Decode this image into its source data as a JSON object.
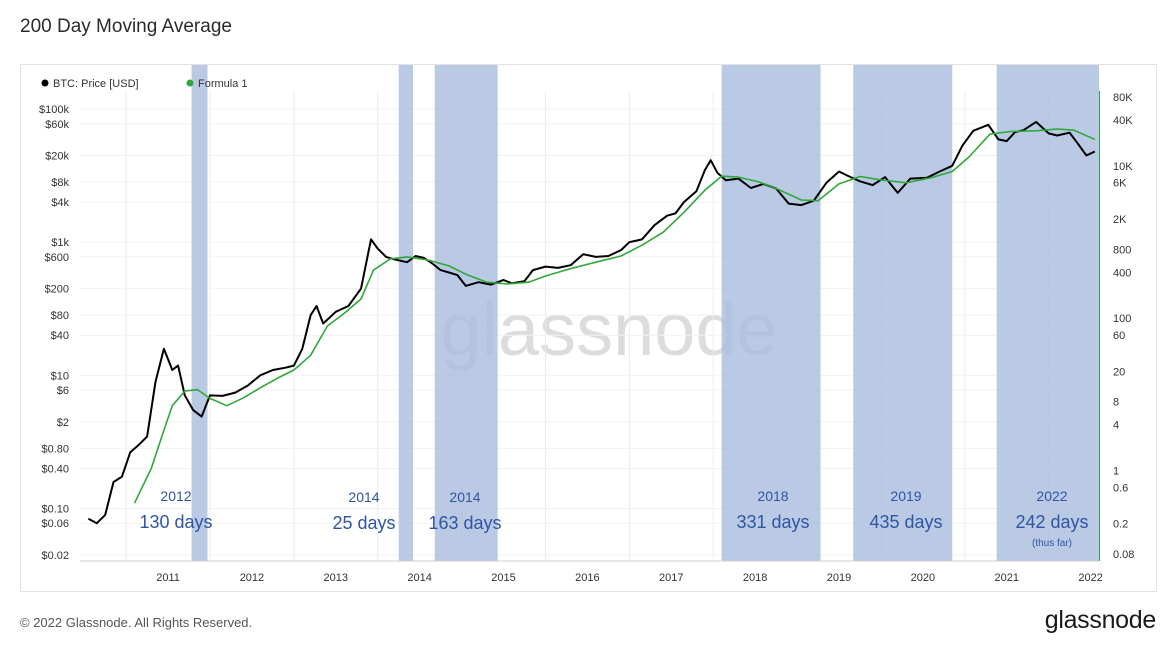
{
  "page": {
    "title": "200 Day Moving Average",
    "copyright": "© 2022 Glassnode. All Rights Reserved.",
    "brand": "glassnode"
  },
  "chart_data": {
    "type": "line",
    "watermark": "glassnode",
    "legend": [
      {
        "name": "BTC: Price [USD]",
        "color": "#000000"
      },
      {
        "name": "Formula 1",
        "color": "#2fa83a"
      }
    ],
    "x_ticks": [
      "2011",
      "2012",
      "2013",
      "2014",
      "2015",
      "2016",
      "2017",
      "2018",
      "2019",
      "2020",
      "2021",
      "2022"
    ],
    "y_left_scale": "log",
    "y_left_ticks": [
      "$100k",
      "$60k",
      "$20k",
      "$8k",
      "$4k",
      "$1k",
      "$600",
      "$200",
      "$80",
      "$40",
      "$10",
      "$6",
      "$2",
      "$0.80",
      "$0.40",
      "$0.10",
      "$0.06",
      "$0.02"
    ],
    "y_left_values": [
      100000,
      60000,
      20000,
      8000,
      4000,
      1000,
      600,
      200,
      80,
      40,
      10,
      6,
      2,
      0.8,
      0.4,
      0.1,
      0.06,
      0.02
    ],
    "y_right_scale": "log",
    "y_right_ticks": [
      "80K",
      "40K",
      "10K",
      "6K",
      "2K",
      "800",
      "400",
      "100",
      "60",
      "20",
      "8",
      "4",
      "1",
      "0.6",
      "0.2",
      "0.08"
    ],
    "y_right_values": [
      80000,
      40000,
      10000,
      6000,
      2000,
      800,
      400,
      100,
      60,
      20,
      8,
      4,
      1,
      0.6,
      0.2,
      0.08
    ],
    "series": [
      {
        "name": "BTC: Price [USD]",
        "color": "#000000",
        "points": [
          [
            2010.55,
            0.07
          ],
          [
            2010.65,
            0.06
          ],
          [
            2010.75,
            0.08
          ],
          [
            2010.85,
            0.25
          ],
          [
            2010.95,
            0.3
          ],
          [
            2011.05,
            0.7
          ],
          [
            2011.15,
            0.9
          ],
          [
            2011.25,
            1.2
          ],
          [
            2011.35,
            8
          ],
          [
            2011.45,
            25
          ],
          [
            2011.55,
            12
          ],
          [
            2011.62,
            14
          ],
          [
            2011.7,
            5
          ],
          [
            2011.8,
            3
          ],
          [
            2011.9,
            2.4
          ],
          [
            2012.0,
            5
          ],
          [
            2012.15,
            4.9
          ],
          [
            2012.3,
            5.5
          ],
          [
            2012.45,
            7
          ],
          [
            2012.6,
            10
          ],
          [
            2012.75,
            12
          ],
          [
            2012.9,
            13
          ],
          [
            2013.0,
            14
          ],
          [
            2013.1,
            25
          ],
          [
            2013.2,
            80
          ],
          [
            2013.27,
            110
          ],
          [
            2013.35,
            60
          ],
          [
            2013.5,
            90
          ],
          [
            2013.65,
            110
          ],
          [
            2013.8,
            200
          ],
          [
            2013.92,
            1100
          ],
          [
            2014.0,
            800
          ],
          [
            2014.1,
            600
          ],
          [
            2014.2,
            550
          ],
          [
            2014.35,
            500
          ],
          [
            2014.45,
            620
          ],
          [
            2014.55,
            580
          ],
          [
            2014.65,
            480
          ],
          [
            2014.75,
            380
          ],
          [
            2014.85,
            350
          ],
          [
            2014.95,
            320
          ],
          [
            2015.05,
            220
          ],
          [
            2015.2,
            250
          ],
          [
            2015.35,
            230
          ],
          [
            2015.5,
            270
          ],
          [
            2015.6,
            240
          ],
          [
            2015.75,
            260
          ],
          [
            2015.85,
            380
          ],
          [
            2016.0,
            430
          ],
          [
            2016.15,
            410
          ],
          [
            2016.3,
            450
          ],
          [
            2016.45,
            660
          ],
          [
            2016.6,
            600
          ],
          [
            2016.75,
            620
          ],
          [
            2016.9,
            760
          ],
          [
            2017.0,
            1000
          ],
          [
            2017.15,
            1100
          ],
          [
            2017.3,
            1800
          ],
          [
            2017.45,
            2500
          ],
          [
            2017.55,
            2700
          ],
          [
            2017.65,
            4000
          ],
          [
            2017.8,
            5800
          ],
          [
            2017.9,
            12000
          ],
          [
            2017.97,
            17000
          ],
          [
            2018.05,
            11000
          ],
          [
            2018.15,
            8500
          ],
          [
            2018.3,
            9000
          ],
          [
            2018.45,
            6500
          ],
          [
            2018.6,
            7500
          ],
          [
            2018.75,
            6400
          ],
          [
            2018.9,
            3800
          ],
          [
            2019.05,
            3600
          ],
          [
            2019.2,
            4200
          ],
          [
            2019.35,
            7800
          ],
          [
            2019.5,
            11500
          ],
          [
            2019.6,
            10000
          ],
          [
            2019.75,
            8200
          ],
          [
            2019.9,
            7200
          ],
          [
            2020.05,
            9500
          ],
          [
            2020.2,
            5500
          ],
          [
            2020.35,
            9000
          ],
          [
            2020.55,
            9300
          ],
          [
            2020.7,
            11500
          ],
          [
            2020.85,
            14000
          ],
          [
            2020.97,
            28000
          ],
          [
            2021.1,
            47000
          ],
          [
            2021.28,
            58000
          ],
          [
            2021.4,
            35000
          ],
          [
            2021.5,
            33000
          ],
          [
            2021.6,
            45000
          ],
          [
            2021.7,
            48000
          ],
          [
            2021.85,
            64000
          ],
          [
            2022.0,
            43000
          ],
          [
            2022.1,
            40000
          ],
          [
            2022.25,
            44000
          ],
          [
            2022.35,
            30000
          ],
          [
            2022.45,
            20000
          ],
          [
            2022.55,
            23000
          ]
        ]
      },
      {
        "name": "Formula 1",
        "color": "#2fa83a",
        "points": [
          [
            2011.1,
            0.12
          ],
          [
            2011.3,
            0.4
          ],
          [
            2011.45,
            1.5
          ],
          [
            2011.55,
            3.5
          ],
          [
            2011.7,
            5.8
          ],
          [
            2011.85,
            6.1
          ],
          [
            2012.0,
            4.5
          ],
          [
            2012.2,
            3.5
          ],
          [
            2012.4,
            4.6
          ],
          [
            2012.6,
            6.5
          ],
          [
            2012.8,
            9
          ],
          [
            2013.0,
            12
          ],
          [
            2013.2,
            20
          ],
          [
            2013.4,
            55
          ],
          [
            2013.6,
            85
          ],
          [
            2013.8,
            140
          ],
          [
            2013.95,
            380
          ],
          [
            2014.15,
            560
          ],
          [
            2014.35,
            600
          ],
          [
            2014.6,
            540
          ],
          [
            2014.85,
            440
          ],
          [
            2015.05,
            330
          ],
          [
            2015.3,
            250
          ],
          [
            2015.55,
            235
          ],
          [
            2015.8,
            250
          ],
          [
            2016.0,
            310
          ],
          [
            2016.3,
            400
          ],
          [
            2016.6,
            500
          ],
          [
            2016.9,
            620
          ],
          [
            2017.15,
            900
          ],
          [
            2017.4,
            1400
          ],
          [
            2017.65,
            2800
          ],
          [
            2017.9,
            6000
          ],
          [
            2018.1,
            9800
          ],
          [
            2018.3,
            9500
          ],
          [
            2018.55,
            8000
          ],
          [
            2018.8,
            6000
          ],
          [
            2019.05,
            4300
          ],
          [
            2019.25,
            4200
          ],
          [
            2019.5,
            7500
          ],
          [
            2019.75,
            9700
          ],
          [
            2020.0,
            8600
          ],
          [
            2020.3,
            7800
          ],
          [
            2020.6,
            9300
          ],
          [
            2020.85,
            11500
          ],
          [
            2021.05,
            19000
          ],
          [
            2021.3,
            42000
          ],
          [
            2021.55,
            46000
          ],
          [
            2021.85,
            47000
          ],
          [
            2022.1,
            50000
          ],
          [
            2022.3,
            48000
          ],
          [
            2022.55,
            35000
          ]
        ]
      }
    ],
    "shaded_periods": [
      {
        "start": 2011.78,
        "end": 2011.97,
        "year": "2012",
        "days": "130 days",
        "note": ""
      },
      {
        "start": 2014.25,
        "end": 2014.42,
        "year": "2014",
        "days": "25 days",
        "note": ""
      },
      {
        "start": 2014.68,
        "end": 2015.43,
        "year": "2014",
        "days": "163 days",
        "note": ""
      },
      {
        "start": 2018.1,
        "end": 2019.28,
        "year": "2018",
        "days": "331 days",
        "note": ""
      },
      {
        "start": 2019.67,
        "end": 2020.85,
        "year": "2019",
        "days": "435 days",
        "note": ""
      },
      {
        "start": 2021.38,
        "end": 2022.6,
        "year": "2022",
        "days": "242 days",
        "note": "(thus far)"
      }
    ]
  }
}
